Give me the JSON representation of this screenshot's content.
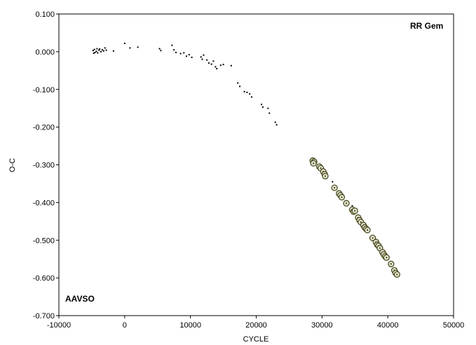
{
  "chart_data": {
    "type": "scatter",
    "title": "",
    "xlabel": "CYCLE",
    "ylabel": "O-C",
    "xlim": [
      -10000,
      50000
    ],
    "ylim": [
      -0.7,
      0.1
    ],
    "x_ticks": [
      -10000,
      0,
      10000,
      20000,
      30000,
      40000,
      50000
    ],
    "x_tick_labels": [
      "-10000",
      "0",
      "10000",
      "20000",
      "30000",
      "40000",
      "50000"
    ],
    "y_ticks": [
      0.1,
      0.0,
      -0.1,
      -0.2,
      -0.3,
      -0.4,
      -0.5,
      -0.6,
      -0.7
    ],
    "y_tick_labels": [
      "0.100",
      "0.000",
      "-0.100",
      "-0.200",
      "-0.300",
      "-0.400",
      "-0.500",
      "-0.600",
      "-0.700"
    ],
    "grid": false,
    "legend": "none",
    "annotations": {
      "top_right": "RR Gem",
      "bottom_left": "AAVSO"
    },
    "series": [
      {
        "marker": "dot",
        "color": "#000000",
        "points": [
          [
            -4800,
            0.003
          ],
          [
            -4700,
            -0.004
          ],
          [
            -4600,
            0.006
          ],
          [
            -4500,
            -0.002
          ],
          [
            -4300,
            0.001
          ],
          [
            -4200,
            0.008
          ],
          [
            -4100,
            -0.003
          ],
          [
            -3900,
            0.004
          ],
          [
            -3800,
            0.007
          ],
          [
            -3600,
            0.0
          ],
          [
            -3400,
            0.005
          ],
          [
            -3200,
            0.002
          ],
          [
            -3000,
            0.01
          ],
          [
            -2800,
            0.004
          ],
          [
            -1700,
            0.002
          ],
          [
            0,
            0.022
          ],
          [
            800,
            0.01
          ],
          [
            2000,
            0.012
          ],
          [
            5300,
            0.008
          ],
          [
            5500,
            0.003
          ],
          [
            7200,
            0.017
          ],
          [
            7500,
            0.005
          ],
          [
            7800,
            -0.002
          ],
          [
            8500,
            -0.005
          ],
          [
            9000,
            -0.003
          ],
          [
            9400,
            -0.012
          ],
          [
            9800,
            -0.008
          ],
          [
            10200,
            -0.015
          ],
          [
            11600,
            -0.014
          ],
          [
            11800,
            -0.02
          ],
          [
            12000,
            -0.009
          ],
          [
            12500,
            -0.022
          ],
          [
            12800,
            -0.03
          ],
          [
            13200,
            -0.033
          ],
          [
            13500,
            -0.025
          ],
          [
            13800,
            -0.04
          ],
          [
            14000,
            -0.045
          ],
          [
            14600,
            -0.036
          ],
          [
            15000,
            -0.034
          ],
          [
            16200,
            -0.037
          ],
          [
            17200,
            -0.083
          ],
          [
            17500,
            -0.092
          ],
          [
            18200,
            -0.106
          ],
          [
            18600,
            -0.108
          ],
          [
            19000,
            -0.112
          ],
          [
            19300,
            -0.12
          ],
          [
            20800,
            -0.14
          ],
          [
            21000,
            -0.147
          ],
          [
            21800,
            -0.15
          ],
          [
            22000,
            -0.163
          ],
          [
            22900,
            -0.187
          ],
          [
            23100,
            -0.194
          ],
          [
            31600,
            -0.345
          ],
          [
            32400,
            -0.372
          ],
          [
            34600,
            -0.409
          ]
        ]
      },
      {
        "marker": "circle-dot",
        "color": "#4a4a1e",
        "points": [
          [
            28600,
            -0.289
          ],
          [
            28800,
            -0.292
          ],
          [
            28700,
            -0.296
          ],
          [
            29600,
            -0.305
          ],
          [
            29800,
            -0.309
          ],
          [
            30200,
            -0.318
          ],
          [
            30400,
            -0.325
          ],
          [
            30500,
            -0.33
          ],
          [
            31900,
            -0.361
          ],
          [
            32600,
            -0.376
          ],
          [
            32800,
            -0.381
          ],
          [
            33000,
            -0.386
          ],
          [
            33700,
            -0.402
          ],
          [
            34600,
            -0.419
          ],
          [
            34800,
            -0.424
          ],
          [
            35000,
            -0.422
          ],
          [
            35500,
            -0.44
          ],
          [
            35700,
            -0.447
          ],
          [
            35900,
            -0.452
          ],
          [
            36300,
            -0.46
          ],
          [
            36500,
            -0.466
          ],
          [
            36700,
            -0.47
          ],
          [
            36900,
            -0.473
          ],
          [
            37700,
            -0.494
          ],
          [
            38200,
            -0.505
          ],
          [
            38400,
            -0.512
          ],
          [
            38600,
            -0.515
          ],
          [
            38800,
            -0.521
          ],
          [
            39200,
            -0.532
          ],
          [
            39400,
            -0.538
          ],
          [
            39600,
            -0.543
          ],
          [
            39800,
            -0.546
          ],
          [
            40500,
            -0.563
          ],
          [
            41000,
            -0.58
          ],
          [
            41200,
            -0.587
          ],
          [
            41400,
            -0.591
          ]
        ]
      }
    ]
  }
}
